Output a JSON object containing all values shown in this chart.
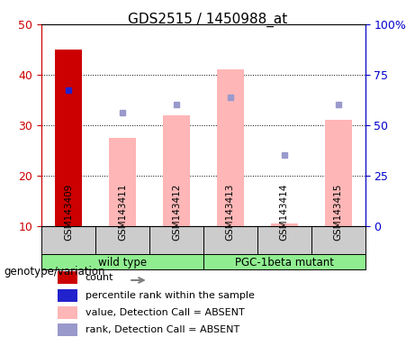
{
  "title": "GDS2515 / 1450988_at",
  "samples": [
    "GSM143409",
    "GSM143411",
    "GSM143412",
    "GSM143413",
    "GSM143414",
    "GSM143415"
  ],
  "bar_values_pink": [
    null,
    27.5,
    32.0,
    41.0,
    10.5,
    31.0
  ],
  "bar_value_red": [
    45.0,
    null,
    null,
    null,
    null,
    null
  ],
  "blue_dot_value": [
    37.0,
    null,
    null,
    null,
    null,
    null
  ],
  "rank_dots": [
    null,
    32.5,
    34.0,
    35.5,
    24.0,
    34.0
  ],
  "ylim_left": [
    10,
    50
  ],
  "ylim_right": [
    0,
    100
  ],
  "yticks_left": [
    10,
    20,
    30,
    40,
    50
  ],
  "yticks_right": [
    0,
    25,
    50,
    75,
    100
  ],
  "ytick_labels_right": [
    "0",
    "25",
    "50",
    "75",
    "100%"
  ],
  "groups": [
    {
      "label": "wild type",
      "samples": [
        0,
        1,
        2
      ],
      "color": "#90EE90"
    },
    {
      "label": "PGC-1beta mutant",
      "samples": [
        3,
        4,
        5
      ],
      "color": "#90EE90"
    }
  ],
  "group_label_prefix": "genotype/variation",
  "legend": [
    {
      "color": "#cc0000",
      "label": "count"
    },
    {
      "color": "#0000cc",
      "label": "percentile rank within the sample"
    },
    {
      "color": "#ffb6c1",
      "label": "value, Detection Call = ABSENT"
    },
    {
      "color": "#b0b0e8",
      "label": "rank, Detection Call = ABSENT"
    }
  ],
  "bar_color_red": "#cc0000",
  "bar_color_pink": "#ffb6b6",
  "dot_color_blue": "#2222cc",
  "dot_color_lavender": "#9999cc",
  "axis_color_left": "#cc0000",
  "axis_color_right": "#0000cc",
  "bg_plot": "#f5f5f5",
  "bg_sample_strip": "#cccccc",
  "bg_group_green": "#90EE90"
}
